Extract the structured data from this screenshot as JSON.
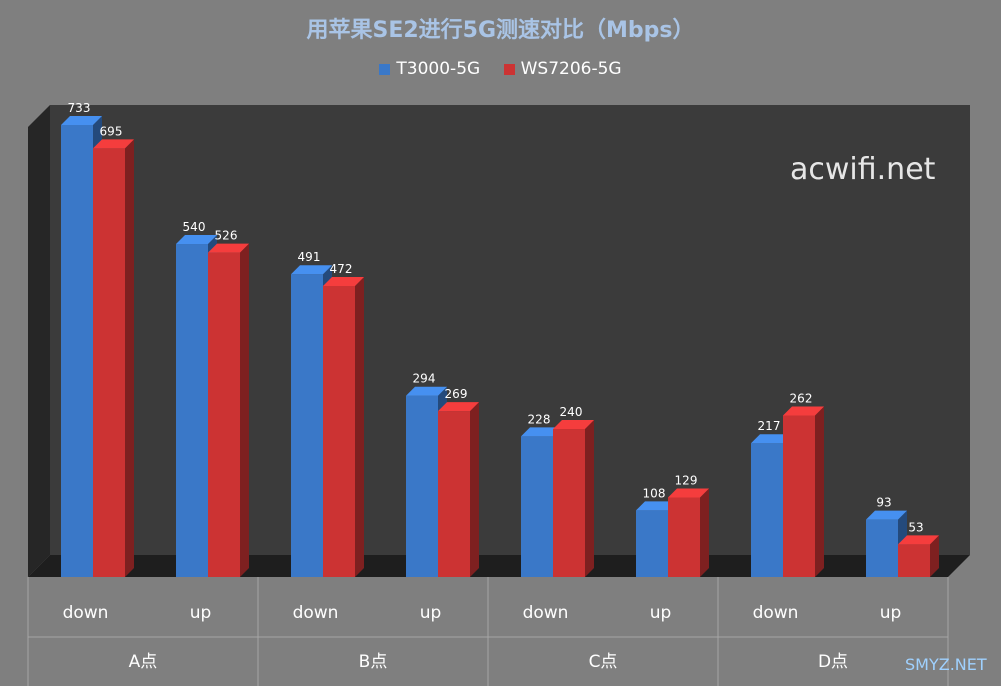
{
  "chart_data": {
    "type": "bar",
    "title": "用苹果SE2进行5G测速对比（Mbps）",
    "groups": [
      "A点",
      "B点",
      "C点",
      "D点"
    ],
    "categories": [
      "down",
      "up",
      "down",
      "up",
      "down",
      "up",
      "down",
      "up"
    ],
    "series": [
      {
        "name": "T3000-5G",
        "color": "#3a78c8",
        "values": [
          733,
          540,
          491,
          294,
          228,
          108,
          217,
          93
        ]
      },
      {
        "name": "WS7206-5G",
        "color": "#cc3333",
        "values": [
          695,
          526,
          472,
          269,
          240,
          129,
          262,
          53
        ]
      }
    ],
    "legend_position": "top-center",
    "style_3d": true
  },
  "watermarks": {
    "main": "acwifi.net",
    "corner": "SMYZ.NET"
  }
}
